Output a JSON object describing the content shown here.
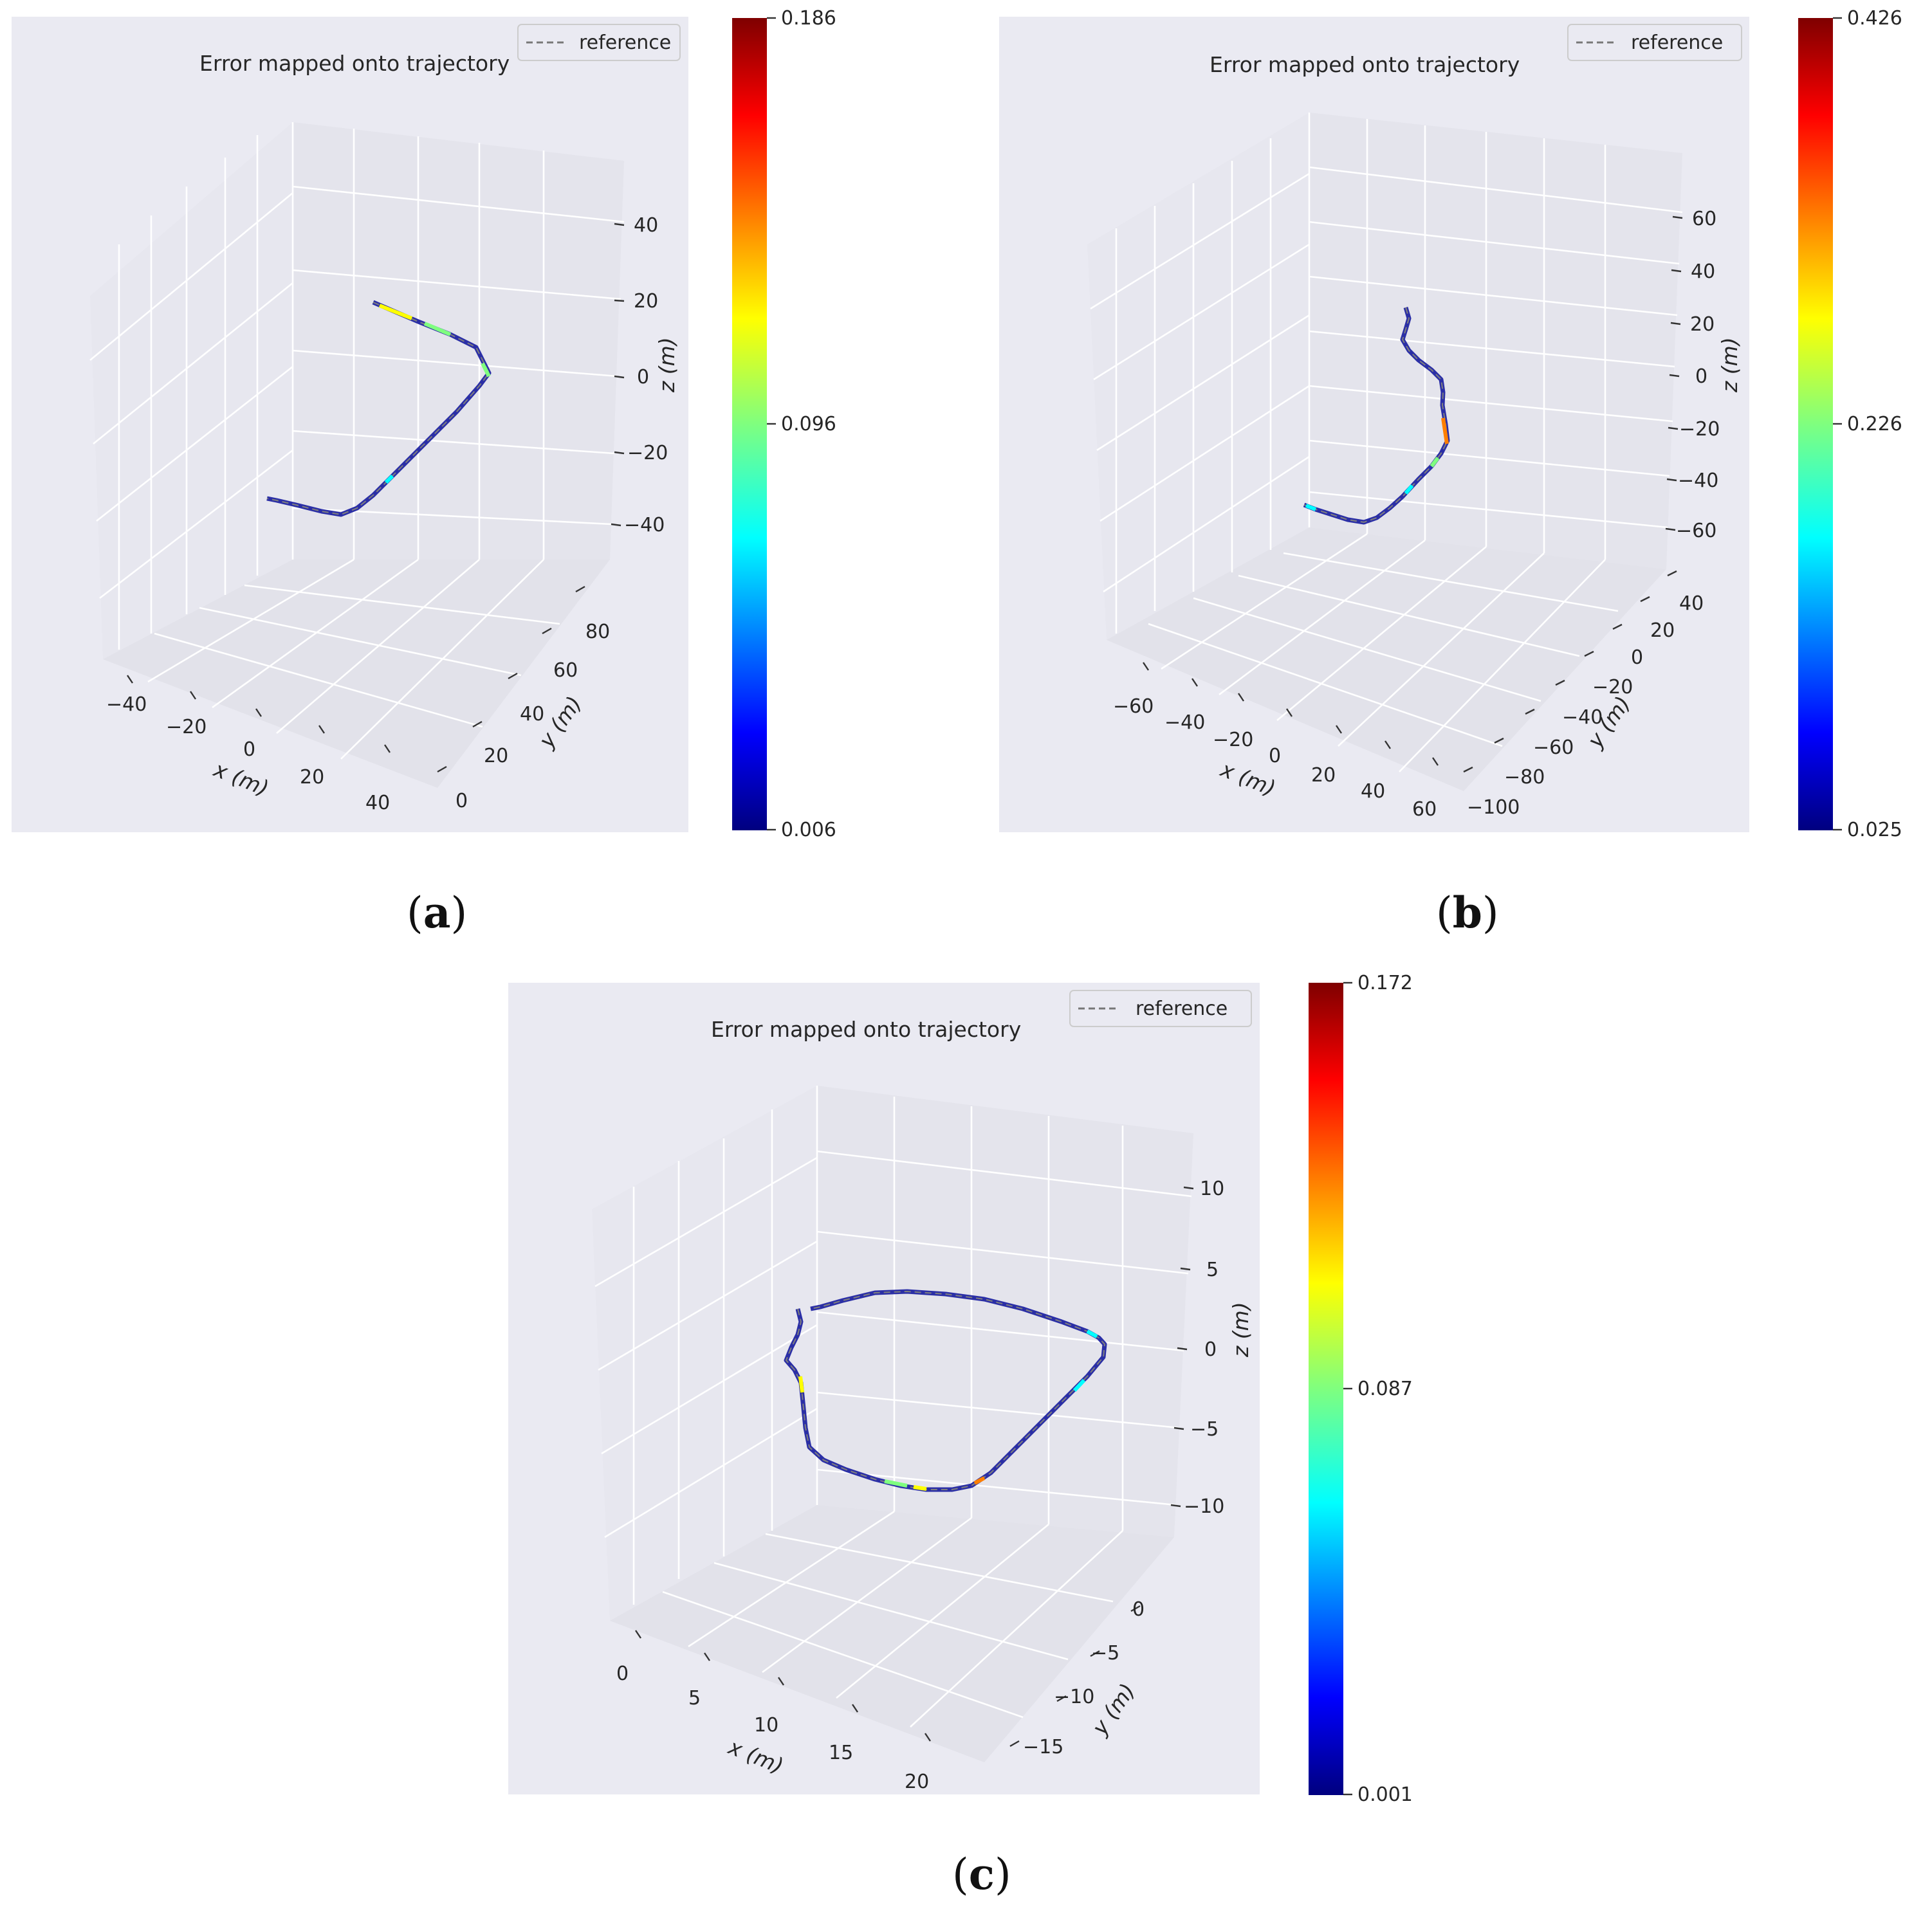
{
  "panels": [
    {
      "id": "a",
      "caption_letter": "a",
      "title": "Error mapped onto trajectory",
      "legend_label": "reference",
      "x_axis_label": "x (m)",
      "y_axis_label": "y (m)",
      "z_axis_label": "z (m)",
      "x_ticks": [
        "−40",
        "−20",
        "0",
        "20",
        "40"
      ],
      "y_ticks": [
        "0",
        "20",
        "40",
        "60",
        "80"
      ],
      "z_ticks": [
        "−40",
        "−20",
        "0",
        "20",
        "40"
      ],
      "colorbar": {
        "min": "0.006",
        "mid": "0.096",
        "max": "0.186"
      }
    },
    {
      "id": "b",
      "caption_letter": "b",
      "title": "Error mapped onto trajectory",
      "legend_label": "reference",
      "x_axis_label": "x (m)",
      "y_axis_label": "y (m)",
      "z_axis_label": "z (m)",
      "x_ticks": [
        "−60",
        "−40",
        "−20",
        "0",
        "20",
        "40",
        "60"
      ],
      "y_ticks": [
        "−100",
        "−80",
        "−60",
        "−40",
        "−20",
        "0",
        "20",
        "40"
      ],
      "z_ticks": [
        "−60",
        "−40",
        "−20",
        "0",
        "20",
        "40",
        "60"
      ],
      "colorbar": {
        "min": "0.025",
        "mid": "0.226",
        "max": "0.426"
      }
    },
    {
      "id": "c",
      "caption_letter": "c",
      "title": "Error mapped onto trajectory",
      "legend_label": "reference",
      "x_axis_label": "x (m)",
      "y_axis_label": "y (m)",
      "z_axis_label": "z (m)",
      "x_ticks": [
        "0",
        "5",
        "10",
        "15",
        "20"
      ],
      "y_ticks": [
        "−15",
        "−10",
        "−5",
        "0"
      ],
      "z_ticks": [
        "−10",
        "−5",
        "0",
        "5",
        "10"
      ],
      "colorbar": {
        "min": "0.001",
        "mid": "0.087",
        "max": "0.172"
      }
    }
  ],
  "colors": {
    "trajectory": "#2b2fa6",
    "jet": [
      "#00007f",
      "#0000ff",
      "#007fff",
      "#00ffff",
      "#7fff7f",
      "#ffff00",
      "#ff7f00",
      "#ff0000",
      "#7f0000"
    ]
  },
  "chart_data": [
    {
      "type": "line",
      "panel": "a",
      "title": "Error mapped onto trajectory",
      "xlabel": "x (m)",
      "ylabel": "y (m)",
      "zlabel": "z (m)",
      "xlim": [
        -50,
        50
      ],
      "ylim": [
        0,
        90
      ],
      "zlim": [
        -45,
        45
      ],
      "series": [
        {
          "name": "reference",
          "style": "dashed"
        },
        {
          "name": "error (colormap)",
          "range": [
            0.006,
            0.186
          ]
        }
      ]
    },
    {
      "type": "line",
      "panel": "b",
      "title": "Error mapped onto trajectory",
      "xlabel": "x (m)",
      "ylabel": "y (m)",
      "zlabel": "z (m)",
      "xlim": [
        -70,
        70
      ],
      "ylim": [
        -110,
        50
      ],
      "zlim": [
        -70,
        70
      ],
      "series": [
        {
          "name": "reference",
          "style": "dashed"
        },
        {
          "name": "error (colormap)",
          "range": [
            0.025,
            0.426
          ]
        }
      ]
    },
    {
      "type": "line",
      "panel": "c",
      "title": "Error mapped onto trajectory",
      "xlabel": "x (m)",
      "ylabel": "y (m)",
      "zlabel": "z (m)",
      "xlim": [
        -2,
        22
      ],
      "ylim": [
        -18,
        3
      ],
      "zlim": [
        -12,
        12
      ],
      "series": [
        {
          "name": "reference",
          "style": "dashed"
        },
        {
          "name": "error (colormap)",
          "range": [
            0.001,
            0.172
          ]
        }
      ]
    }
  ]
}
